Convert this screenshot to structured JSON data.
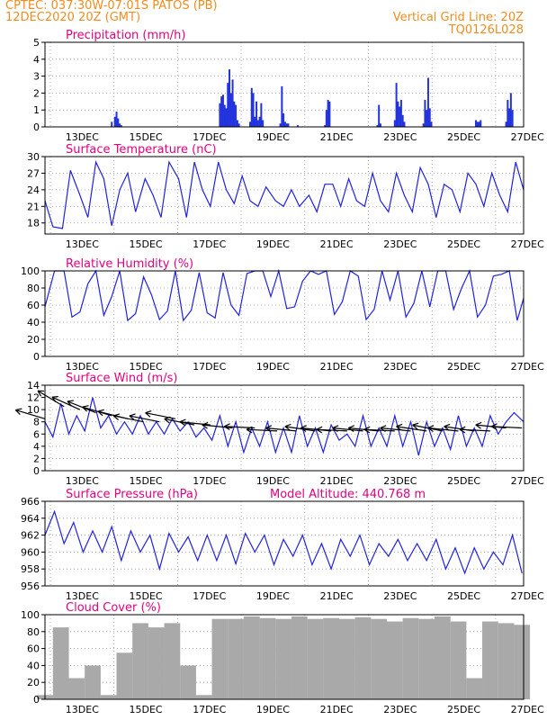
{
  "header": {
    "station": "CPTEC:   037:30W-07:01S   PATOS (PB)",
    "date": "12DEC2020 20Z (GMT)",
    "grid_note": "Vertical Grid Line: 20Z",
    "code": "TQ0126L028"
  },
  "colors": {
    "title": "#e5007e",
    "header": "#f08c1e",
    "line": "#2222dd",
    "bar": "#2233dd",
    "cloud": "#a9a9a9"
  },
  "x_ticks": [
    "13DEC",
    "15DEC",
    "17DEC",
    "19DEC",
    "21DEC",
    "23DEC",
    "25DEC",
    "27DEC"
  ],
  "chart_data": [
    {
      "type": "bar",
      "title": "Precipitation (mm/h)",
      "ylim": [
        0,
        5
      ],
      "yticks": [
        0,
        1,
        2,
        3,
        4,
        5
      ],
      "x_unit": "days since 12DEC 20Z",
      "x": [
        2.1,
        2.2,
        2.25,
        2.3,
        2.35,
        2.4,
        5.5,
        5.55,
        5.6,
        5.65,
        5.7,
        5.75,
        5.8,
        5.85,
        5.9,
        5.95,
        6.0,
        6.05,
        6.1,
        6.45,
        6.5,
        6.55,
        6.6,
        6.65,
        6.7,
        6.75,
        6.8,
        6.85,
        7.4,
        7.45,
        7.5,
        7.55,
        7.6,
        7.65,
        7.95,
        8.8,
        8.85,
        8.9,
        8.95,
        10.45,
        10.5,
        10.55,
        11.0,
        11.05,
        11.1,
        11.15,
        11.2,
        11.25,
        11.3,
        11.9,
        11.95,
        12.0,
        12.05,
        12.1,
        12.15,
        13.55,
        13.6,
        13.65,
        13.7,
        14.5,
        14.55,
        14.6,
        14.65,
        14.7
      ],
      "values": [
        0.3,
        0.6,
        0.9,
        0.5,
        0.2,
        0.1,
        1.4,
        1.8,
        1.9,
        1.3,
        1.1,
        2.6,
        3.4,
        2.0,
        2.8,
        1.5,
        1.3,
        0.4,
        0.2,
        0.3,
        2.3,
        2.0,
        0.6,
        1.5,
        0.4,
        0.6,
        1.4,
        0.4,
        0.2,
        2.4,
        0.8,
        0.3,
        0.2,
        0.2,
        0.1,
        0.1,
        1.0,
        1.6,
        1.5,
        0.1,
        1.3,
        0.2,
        0.4,
        2.6,
        1.5,
        1.2,
        1.6,
        0.7,
        0.3,
        0.2,
        1.6,
        1.0,
        2.9,
        1.1,
        0.3,
        0.4,
        0.3,
        0.3,
        0.4,
        0.3,
        1.6,
        1.1,
        2.0,
        1.0
      ]
    },
    {
      "type": "line",
      "title": "Surface Temperature (nC)",
      "ylim": [
        16,
        30
      ],
      "yticks": [
        18,
        21,
        24,
        27,
        30
      ],
      "x_unit": "days since 12DEC 20Z",
      "x": [
        0,
        0.25,
        0.55,
        0.8,
        1.1,
        1.35,
        1.6,
        1.85,
        2.1,
        2.35,
        2.6,
        2.85,
        3.15,
        3.4,
        3.65,
        3.9,
        4.2,
        4.45,
        4.7,
        4.95,
        5.2,
        5.45,
        5.7,
        5.95,
        6.2,
        6.45,
        6.7,
        6.95,
        7.25,
        7.5,
        7.75,
        8.0,
        8.3,
        8.55,
        8.8,
        9.05,
        9.3,
        9.55,
        9.8,
        10.05,
        10.3,
        10.55,
        10.8,
        11.05,
        11.3,
        11.55,
        11.8,
        12.05,
        12.3,
        12.55,
        12.8,
        13.05,
        13.3,
        13.55,
        13.8,
        14.05,
        14.3,
        14.55,
        14.8,
        15.05
      ],
      "values": [
        22,
        17.3,
        17,
        27.5,
        23,
        19,
        29,
        26,
        17.5,
        24,
        27,
        20,
        26,
        23,
        19,
        29,
        26,
        19,
        29,
        24,
        21,
        29,
        24,
        21.5,
        26.5,
        22,
        21,
        24.5,
        22,
        21,
        24,
        21,
        23,
        20,
        25,
        25,
        21,
        26,
        22,
        21,
        27,
        22,
        20,
        27,
        23,
        20,
        28,
        25,
        19,
        25,
        24,
        20,
        27,
        25,
        21,
        27,
        23,
        20,
        29,
        24
      ]
    },
    {
      "type": "line",
      "title": "Relative Humidity (%)",
      "ylim": [
        0,
        100
      ],
      "yticks": [
        0,
        20,
        40,
        60,
        80,
        100
      ],
      "x_unit": "days since 12DEC 20Z",
      "x": [
        0,
        0.3,
        0.6,
        0.85,
        1.1,
        1.35,
        1.6,
        1.85,
        2.1,
        2.35,
        2.6,
        2.85,
        3.1,
        3.35,
        3.6,
        3.85,
        4.1,
        4.35,
        4.6,
        4.85,
        5.1,
        5.35,
        5.6,
        5.85,
        6.1,
        6.35,
        6.6,
        6.85,
        7.1,
        7.35,
        7.6,
        7.85,
        8.1,
        8.35,
        8.6,
        8.85,
        9.1,
        9.35,
        9.6,
        9.85,
        10.1,
        10.35,
        10.6,
        10.85,
        11.1,
        11.35,
        11.6,
        11.85,
        12.1,
        12.35,
        12.6,
        12.85,
        13.1,
        13.35,
        13.6,
        13.85,
        14.1,
        14.35,
        14.6,
        14.85,
        15.05
      ],
      "values": [
        58,
        100,
        100,
        46,
        52,
        85,
        100,
        48,
        70,
        100,
        42,
        50,
        93,
        72,
        43,
        53,
        100,
        42,
        54,
        98,
        51,
        45,
        98,
        60,
        48,
        97,
        100,
        100,
        70,
        100,
        56,
        58,
        88,
        100,
        96,
        100,
        49,
        64,
        100,
        94,
        43,
        55,
        100,
        66,
        100,
        46,
        62,
        100,
        58,
        100,
        100,
        55,
        80,
        100,
        46,
        60,
        94,
        96,
        100,
        42,
        68
      ]
    },
    {
      "type": "line",
      "title": "Surface Wind (m/s)",
      "ylim": [
        0,
        14
      ],
      "yticks": [
        0,
        2,
        4,
        6,
        8,
        10,
        12,
        14
      ],
      "x_unit": "days since 12DEC 20Z",
      "x": [
        0,
        0.25,
        0.5,
        0.75,
        1.0,
        1.25,
        1.5,
        1.75,
        2.0,
        2.25,
        2.5,
        2.75,
        3.0,
        3.25,
        3.5,
        3.75,
        4.0,
        4.25,
        4.5,
        4.75,
        5.0,
        5.25,
        5.5,
        5.75,
        6.0,
        6.25,
        6.5,
        6.75,
        7.0,
        7.25,
        7.5,
        7.75,
        8.0,
        8.25,
        8.5,
        8.75,
        9.0,
        9.25,
        9.5,
        9.75,
        10.0,
        10.25,
        10.5,
        10.75,
        11.0,
        11.25,
        11.5,
        11.75,
        12.0,
        12.25,
        12.5,
        12.75,
        13.0,
        13.25,
        13.5,
        13.75,
        14.0,
        14.25,
        14.5,
        14.75,
        15.05
      ],
      "values": [
        8,
        5.5,
        11,
        6,
        9,
        6.5,
        12,
        7,
        9,
        6,
        8,
        6,
        9,
        6,
        8,
        6,
        8.5,
        6.5,
        8,
        5.5,
        7,
        5,
        9,
        4,
        8,
        3,
        7,
        4,
        8,
        3,
        7,
        3,
        9,
        4,
        7,
        3,
        7.5,
        5,
        6,
        4,
        9,
        4,
        7,
        4,
        9,
        4,
        8,
        2.5,
        8,
        4,
        7,
        3.5,
        9,
        4,
        7,
        4,
        9,
        6,
        8,
        9.5,
        8
      ],
      "barbs": {
        "x": [
          0.0,
          0.6,
          1.1,
          1.6,
          2.1,
          2.6,
          3.1,
          3.6,
          4.1,
          4.7,
          5.2,
          5.9,
          6.6,
          7.3,
          7.9,
          8.5,
          9.0,
          9.5,
          10.0,
          10.5,
          11.0,
          11.5,
          12.0,
          12.5,
          13.0,
          13.5,
          14.0,
          14.5,
          15.0
        ],
        "speed": [
          8.5,
          10.5,
          10,
          9.5,
          9,
          8.5,
          8,
          8,
          8.5,
          7.5,
          7.5,
          7,
          7,
          6.5,
          6.5,
          6.5,
          6.5,
          6.5,
          6.5,
          6.5,
          6.5,
          6.5,
          6.5,
          6.5,
          6.5,
          6.5,
          6.5,
          7,
          7
        ],
        "dx": [
          -1,
          -1,
          -1,
          -1,
          -1,
          -1,
          -1,
          -1,
          -1,
          -1,
          -1,
          -1,
          -1,
          -1,
          -1,
          -1,
          -1,
          -1,
          -1,
          -1,
          -1,
          -1,
          -1,
          -1,
          -1,
          -1,
          -1,
          -1,
          -1
        ],
        "dy": [
          0.3,
          0.6,
          0.45,
          0.4,
          0.3,
          0.25,
          0.2,
          0.2,
          0.2,
          0.2,
          0.1,
          0.1,
          0.05,
          0.05,
          0.1,
          0.15,
          0.1,
          0.05,
          0.1,
          0.1,
          0.05,
          0.1,
          0.15,
          0.2,
          0.1,
          0.15,
          0.05,
          0.1,
          0.05
        ]
      }
    },
    {
      "type": "line",
      "title": "Surface Pressure (hPa)",
      "annotation": "Model Altitude: 440.768 m",
      "ylim": [
        956,
        966
      ],
      "yticks": [
        956,
        958,
        960,
        962,
        964,
        966
      ],
      "x_unit": "days since 12DEC 20Z",
      "x": [
        0,
        0.3,
        0.6,
        0.9,
        1.2,
        1.5,
        1.8,
        2.1,
        2.4,
        2.7,
        3.0,
        3.3,
        3.6,
        3.9,
        4.2,
        4.5,
        4.8,
        5.1,
        5.4,
        5.7,
        6.0,
        6.3,
        6.6,
        6.9,
        7.2,
        7.5,
        7.8,
        8.1,
        8.4,
        8.7,
        9.0,
        9.3,
        9.6,
        9.9,
        10.2,
        10.5,
        10.8,
        11.1,
        11.4,
        11.7,
        12.0,
        12.3,
        12.6,
        12.9,
        13.2,
        13.5,
        13.8,
        14.1,
        14.4,
        14.7,
        15.0
      ],
      "values": [
        962,
        964.8,
        961,
        963.5,
        960,
        962.5,
        960,
        963,
        959,
        962.5,
        960,
        962,
        958,
        962.2,
        960,
        961.8,
        959,
        962,
        959,
        962,
        958.6,
        962.2,
        960,
        962,
        958.5,
        961.5,
        959.5,
        962,
        958.5,
        961,
        958,
        961.5,
        959.5,
        962,
        958.5,
        961,
        959.5,
        961.5,
        959,
        961,
        959,
        961.5,
        958,
        960.5,
        957.5,
        960.5,
        958,
        960,
        958.5,
        962,
        957.5
      ]
    },
    {
      "type": "bar",
      "title": "Cloud Cover (%)",
      "ylim": [
        0,
        100
      ],
      "yticks": [
        0,
        20,
        40,
        60,
        80,
        100
      ],
      "x_unit": "days since 12DEC 20Z",
      "x": [
        0,
        0.5,
        1.0,
        1.5,
        2.0,
        2.5,
        3.0,
        3.5,
        4.0,
        4.5,
        5.0,
        5.5,
        6.0,
        6.5,
        7.0,
        7.5,
        8.0,
        8.5,
        9.0,
        9.5,
        10.0,
        10.5,
        11.0,
        11.5,
        12.0,
        12.5,
        13.0,
        13.5,
        14.0,
        14.5,
        15.0
      ],
      "values": [
        5,
        85,
        25,
        40,
        5,
        55,
        90,
        85,
        90,
        40,
        5,
        95,
        95,
        98,
        96,
        95,
        98,
        95,
        96,
        95,
        97,
        95,
        92,
        96,
        95,
        98,
        92,
        25,
        92,
        90,
        88
      ]
    }
  ]
}
